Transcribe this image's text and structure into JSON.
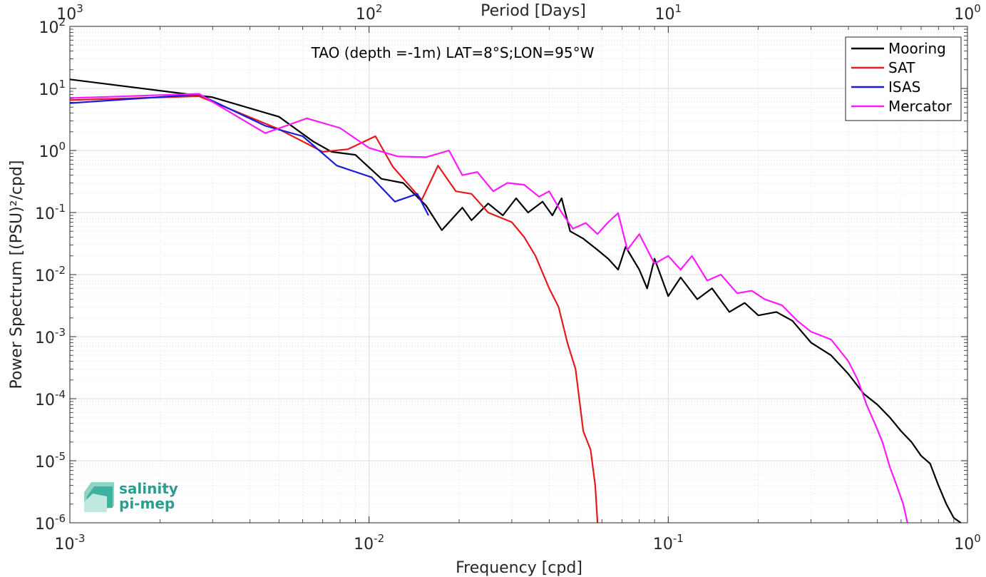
{
  "chart_data": {
    "type": "line",
    "annotation": "TAO (depth =-1m) LAT=8°S;LON=95°W",
    "xlabel": "Frequency [cpd]",
    "ylabel": "Power Spectrum [(PSU)²/cpd]",
    "top_xlabel": "Period [Days]",
    "x_scale": "log",
    "y_scale": "log",
    "xlim": [
      0.001,
      1
    ],
    "ylim": [
      1e-06,
      100
    ],
    "grid": true,
    "legend_position": "top-right",
    "x_ticks": [
      {
        "base": "10",
        "exp": "-3"
      },
      {
        "base": "10",
        "exp": "-2"
      },
      {
        "base": "10",
        "exp": "-1"
      },
      {
        "base": "10",
        "exp": "0"
      }
    ],
    "top_ticks": [
      {
        "base": "10",
        "exp": "3"
      },
      {
        "base": "10",
        "exp": "2"
      },
      {
        "base": "10",
        "exp": "1"
      },
      {
        "base": "10",
        "exp": "0"
      }
    ],
    "y_ticks": [
      {
        "base": "10",
        "exp": "2"
      },
      {
        "base": "10",
        "exp": "1"
      },
      {
        "base": "10",
        "exp": "0"
      },
      {
        "base": "10",
        "exp": "-1"
      },
      {
        "base": "10",
        "exp": "-2"
      },
      {
        "base": "10",
        "exp": "-3"
      },
      {
        "base": "10",
        "exp": "-4"
      },
      {
        "base": "10",
        "exp": "-5"
      },
      {
        "base": "10",
        "exp": "-6"
      }
    ],
    "series": [
      {
        "name": "Mooring",
        "color": "#000000",
        "points": [
          [
            0.001,
            14
          ],
          [
            0.003,
            7.2
          ],
          [
            0.005,
            3.5
          ],
          [
            0.0065,
            1.4
          ],
          [
            0.0075,
            0.95
          ],
          [
            0.009,
            0.85
          ],
          [
            0.011,
            0.35
          ],
          [
            0.013,
            0.3
          ],
          [
            0.0155,
            0.13
          ],
          [
            0.0175,
            0.052
          ],
          [
            0.0205,
            0.12
          ],
          [
            0.022,
            0.075
          ],
          [
            0.025,
            0.14
          ],
          [
            0.028,
            0.09
          ],
          [
            0.031,
            0.17
          ],
          [
            0.034,
            0.1
          ],
          [
            0.038,
            0.15
          ],
          [
            0.041,
            0.09
          ],
          [
            0.044,
            0.17
          ],
          [
            0.047,
            0.05
          ],
          [
            0.052,
            0.038
          ],
          [
            0.058,
            0.025
          ],
          [
            0.063,
            0.018
          ],
          [
            0.068,
            0.012
          ],
          [
            0.072,
            0.028
          ],
          [
            0.08,
            0.012
          ],
          [
            0.085,
            0.006
          ],
          [
            0.09,
            0.018
          ],
          [
            0.1,
            0.0045
          ],
          [
            0.11,
            0.009
          ],
          [
            0.125,
            0.004
          ],
          [
            0.14,
            0.006
          ],
          [
            0.16,
            0.0025
          ],
          [
            0.18,
            0.0035
          ],
          [
            0.2,
            0.0022
          ],
          [
            0.23,
            0.0025
          ],
          [
            0.26,
            0.0018
          ],
          [
            0.3,
            0.0008
          ],
          [
            0.35,
            0.0005
          ],
          [
            0.4,
            0.00025
          ],
          [
            0.45,
            0.00012
          ],
          [
            0.5,
            8e-05
          ],
          [
            0.55,
            5e-05
          ],
          [
            0.6,
            3e-05
          ],
          [
            0.65,
            2e-05
          ],
          [
            0.7,
            1.2e-05
          ],
          [
            0.75,
            9e-06
          ],
          [
            0.8,
            4e-06
          ],
          [
            0.85,
            2e-06
          ],
          [
            0.9,
            1.2e-06
          ],
          [
            0.95,
            1e-06
          ]
        ]
      },
      {
        "name": "SAT",
        "color": "#e6191a",
        "points": [
          [
            0.001,
            6.5
          ],
          [
            0.0027,
            7.5
          ],
          [
            0.005,
            2.2
          ],
          [
            0.007,
            0.95
          ],
          [
            0.0085,
            1.05
          ],
          [
            0.0105,
            1.7
          ],
          [
            0.012,
            0.55
          ],
          [
            0.015,
            0.16
          ],
          [
            0.017,
            0.57
          ],
          [
            0.0195,
            0.22
          ],
          [
            0.022,
            0.2
          ],
          [
            0.025,
            0.1
          ],
          [
            0.03,
            0.07
          ],
          [
            0.033,
            0.04
          ],
          [
            0.036,
            0.02
          ],
          [
            0.04,
            0.006
          ],
          [
            0.043,
            0.003
          ],
          [
            0.046,
            0.0008
          ],
          [
            0.049,
            0.0003
          ],
          [
            0.052,
            3e-05
          ],
          [
            0.055,
            1.5e-05
          ],
          [
            0.057,
            4e-06
          ],
          [
            0.058,
            1e-06
          ]
        ]
      },
      {
        "name": "ISAS",
        "color": "#1a1adc",
        "points": [
          [
            0.001,
            5.8
          ],
          [
            0.0027,
            8.0
          ],
          [
            0.0045,
            2.5
          ],
          [
            0.006,
            1.7
          ],
          [
            0.0078,
            0.57
          ],
          [
            0.0102,
            0.37
          ],
          [
            0.0122,
            0.15
          ],
          [
            0.0145,
            0.2
          ],
          [
            0.0158,
            0.09
          ]
        ]
      },
      {
        "name": "Mercator",
        "color": "#ff19ff",
        "points": [
          [
            0.001,
            7.0
          ],
          [
            0.0027,
            8.2
          ],
          [
            0.0045,
            1.9
          ],
          [
            0.0062,
            3.3
          ],
          [
            0.008,
            2.3
          ],
          [
            0.01,
            1.1
          ],
          [
            0.0125,
            0.8
          ],
          [
            0.0155,
            0.78
          ],
          [
            0.0185,
            1.0
          ],
          [
            0.0205,
            0.4
          ],
          [
            0.023,
            0.45
          ],
          [
            0.026,
            0.22
          ],
          [
            0.029,
            0.3
          ],
          [
            0.033,
            0.28
          ],
          [
            0.037,
            0.18
          ],
          [
            0.04,
            0.22
          ],
          [
            0.044,
            0.1
          ],
          [
            0.048,
            0.055
          ],
          [
            0.053,
            0.068
          ],
          [
            0.058,
            0.045
          ],
          [
            0.063,
            0.07
          ],
          [
            0.068,
            0.098
          ],
          [
            0.073,
            0.025
          ],
          [
            0.08,
            0.045
          ],
          [
            0.09,
            0.015
          ],
          [
            0.1,
            0.02
          ],
          [
            0.11,
            0.012
          ],
          [
            0.12,
            0.02
          ],
          [
            0.135,
            0.008
          ],
          [
            0.15,
            0.01
          ],
          [
            0.17,
            0.005
          ],
          [
            0.19,
            0.0055
          ],
          [
            0.21,
            0.004
          ],
          [
            0.24,
            0.0032
          ],
          [
            0.27,
            0.0018
          ],
          [
            0.3,
            0.0012
          ],
          [
            0.35,
            0.0009
          ],
          [
            0.4,
            0.0004
          ],
          [
            0.43,
            0.0002
          ],
          [
            0.46,
            8e-05
          ],
          [
            0.49,
            4e-05
          ],
          [
            0.52,
            2e-05
          ],
          [
            0.55,
            8e-06
          ],
          [
            0.58,
            4e-06
          ],
          [
            0.61,
            2e-06
          ],
          [
            0.63,
            1e-06
          ]
        ]
      }
    ]
  },
  "logo": {
    "line1": "salinity",
    "line2": "pi-mep"
  },
  "colors": {
    "grid": "#dcdcdc",
    "axis": "#262626",
    "logo": "#2a9d8f"
  }
}
